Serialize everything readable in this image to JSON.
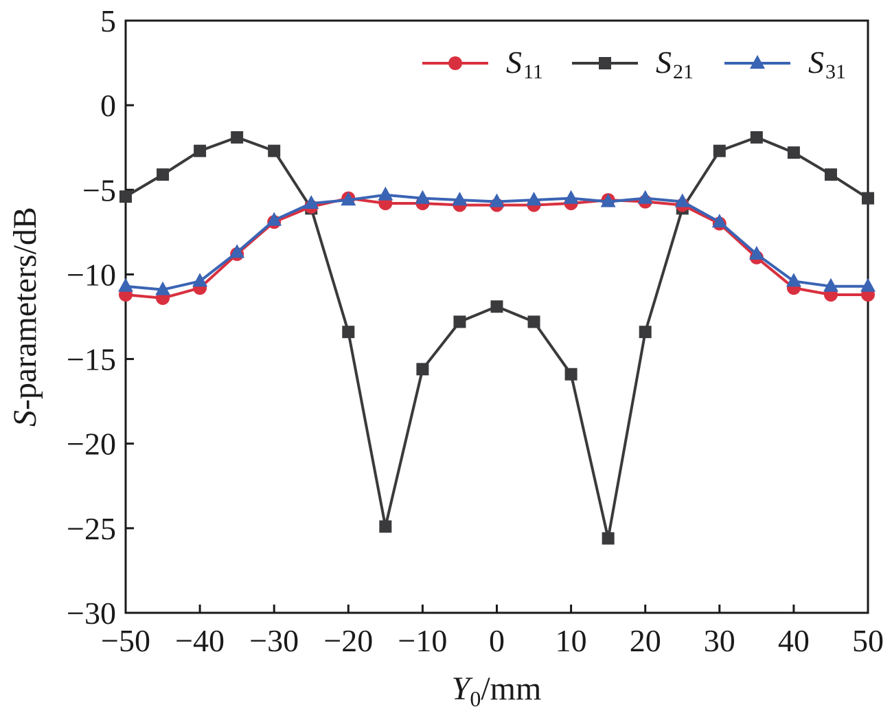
{
  "chart_data": {
    "type": "line",
    "xlabel": {
      "main": "Y",
      "sub": "0",
      "unit": "/mm"
    },
    "ylabel": {
      "main": "S",
      "rest": "-parameters/dB"
    },
    "xlim": [
      -50,
      50
    ],
    "ylim": [
      -30,
      5
    ],
    "xticks": [
      -50,
      -40,
      -30,
      -20,
      -10,
      0,
      10,
      20,
      30,
      40,
      50
    ],
    "yticks": [
      5,
      0,
      -5,
      -10,
      -15,
      -20,
      -25,
      -30
    ],
    "xtick_labels": [
      "−50",
      "−40",
      "−30",
      "−20",
      "−10",
      "0",
      "10",
      "20",
      "30",
      "40",
      "50"
    ],
    "ytick_labels": [
      "5",
      "0",
      "−5",
      "−10",
      "−15",
      "−20",
      "−25",
      "−30"
    ],
    "legend_position": "top-right",
    "grid": false,
    "x": [
      -50,
      -45,
      -40,
      -35,
      -30,
      -25,
      -20,
      -15,
      -10,
      -5,
      0,
      5,
      10,
      15,
      20,
      25,
      30,
      35,
      40,
      45,
      50
    ],
    "series": [
      {
        "name": "S11",
        "label_main": "S",
        "label_sub": "11",
        "color": "#d9303f",
        "marker": "circle",
        "values": [
          -11.2,
          -11.4,
          -10.8,
          -8.8,
          -6.9,
          -6.0,
          -5.5,
          -5.8,
          -5.8,
          -5.9,
          -5.9,
          -5.9,
          -5.8,
          -5.6,
          -5.7,
          -5.9,
          -7.0,
          -9.0,
          -10.8,
          -11.2,
          -11.2
        ]
      },
      {
        "name": "S21",
        "label_main": "S",
        "label_sub": "21",
        "color": "#3a3a3c",
        "marker": "square",
        "values": [
          -5.4,
          -4.1,
          -2.7,
          -1.9,
          -2.7,
          -6.1,
          -13.4,
          -24.9,
          -15.6,
          -12.8,
          -11.9,
          -12.8,
          -15.9,
          -25.6,
          -13.4,
          -6.1,
          -2.7,
          -1.9,
          -2.8,
          -4.1,
          -5.5
        ]
      },
      {
        "name": "S31",
        "label_main": "S",
        "label_sub": "31",
        "color": "#3a64b4",
        "marker": "triangle",
        "values": [
          -10.7,
          -10.9,
          -10.4,
          -8.7,
          -6.8,
          -5.8,
          -5.6,
          -5.3,
          -5.5,
          -5.6,
          -5.7,
          -5.6,
          -5.5,
          -5.7,
          -5.5,
          -5.7,
          -6.9,
          -8.8,
          -10.4,
          -10.7,
          -10.7
        ]
      }
    ]
  }
}
